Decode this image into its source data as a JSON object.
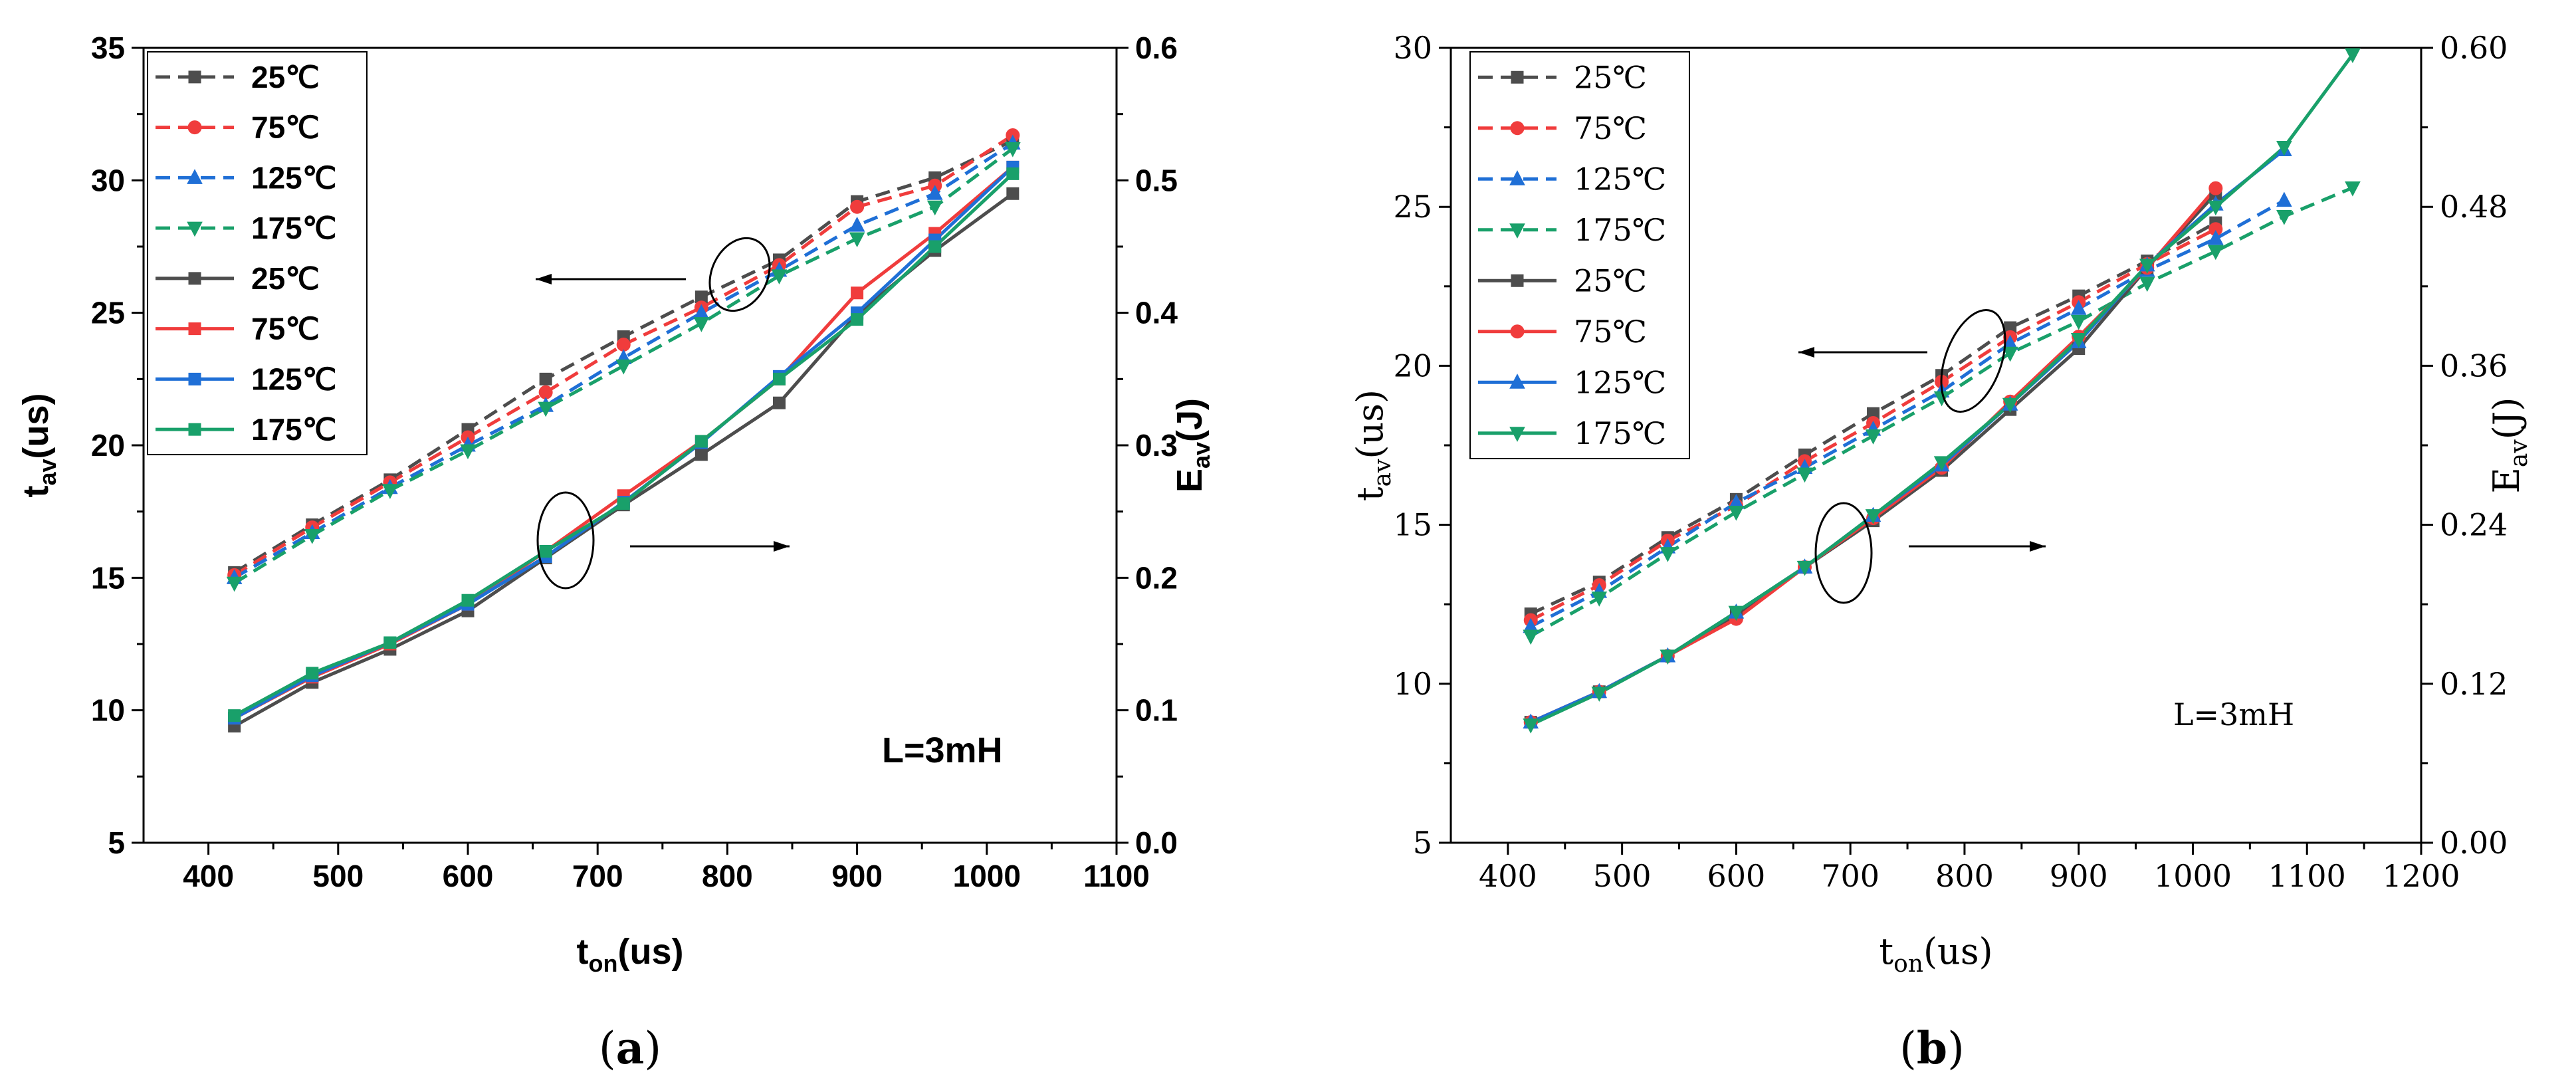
{
  "chart_data": [
    {
      "id": "a",
      "type": "line",
      "caption": "a",
      "annotation": "L=3mH",
      "x": [
        420,
        480,
        540,
        600,
        660,
        720,
        780,
        840,
        900,
        960,
        1020
      ],
      "xlim": [
        350,
        1100
      ],
      "xticks": [
        400,
        500,
        600,
        700,
        800,
        900,
        1000,
        1100
      ],
      "xlabel": {
        "main": "t",
        "sub": "on",
        "unit": "(us)"
      },
      "ylim_left": [
        5,
        35
      ],
      "yticks_left": [
        5,
        10,
        15,
        20,
        25,
        30,
        35
      ],
      "ylabel_left": {
        "main": "t",
        "sub": "av",
        "unit": "(us)"
      },
      "ylim_right": [
        0.0,
        0.6
      ],
      "yticks_right": [
        "0.0",
        "0.1",
        "0.2",
        "0.3",
        "0.4",
        "0.5",
        "0.6"
      ],
      "ylabel_right": {
        "main": "E",
        "sub": "av",
        "unit": "(J)"
      },
      "legend": [
        "25℃",
        "75℃",
        "125℃",
        "175℃",
        "25℃",
        "75℃",
        "125℃",
        "175℃"
      ],
      "series": [
        {
          "name": "25℃",
          "axis": "left",
          "style": "dashed",
          "marker": "square",
          "color": "#4d4d4d",
          "values": [
            15.2,
            17.0,
            18.7,
            20.6,
            22.5,
            24.1,
            25.6,
            27.0,
            29.2,
            30.1,
            31.5
          ]
        },
        {
          "name": "75℃",
          "axis": "left",
          "style": "dashed",
          "marker": "circle",
          "color": "#f03c3c",
          "values": [
            15.1,
            16.9,
            18.6,
            20.3,
            22.0,
            23.8,
            25.2,
            26.8,
            29.0,
            29.8,
            31.7
          ]
        },
        {
          "name": "125℃",
          "axis": "left",
          "style": "dashed",
          "marker": "triangle-up",
          "color": "#1f6fd6",
          "values": [
            15.0,
            16.7,
            18.4,
            20.0,
            21.5,
            23.3,
            25.0,
            26.6,
            28.3,
            29.5,
            31.4
          ]
        },
        {
          "name": "175℃",
          "axis": "left",
          "style": "dashed",
          "marker": "triangle-down",
          "color": "#19a06a",
          "values": [
            14.8,
            16.6,
            18.3,
            19.8,
            21.4,
            23.0,
            24.6,
            26.4,
            27.8,
            29.0,
            31.2
          ]
        },
        {
          "name": "25℃",
          "axis": "right",
          "style": "solid",
          "marker": "square",
          "color": "#4d4d4d",
          "values": [
            0.088,
            0.121,
            0.146,
            0.175,
            0.215,
            0.255,
            0.293,
            0.332,
            0.399,
            0.447,
            0.49
          ]
        },
        {
          "name": "75℃",
          "axis": "right",
          "style": "solid",
          "marker": "square",
          "color": "#f03c3c",
          "values": [
            0.094,
            0.125,
            0.15,
            0.18,
            0.22,
            0.262,
            0.303,
            0.35,
            0.415,
            0.46,
            0.51
          ]
        },
        {
          "name": "125℃",
          "axis": "right",
          "style": "solid",
          "marker": "square",
          "color": "#1f6fd6",
          "values": [
            0.094,
            0.126,
            0.151,
            0.18,
            0.216,
            0.257,
            0.302,
            0.352,
            0.4,
            0.455,
            0.51
          ]
        },
        {
          "name": "175℃",
          "axis": "right",
          "style": "solid",
          "marker": "square",
          "color": "#19a06a",
          "values": [
            0.096,
            0.128,
            0.151,
            0.183,
            0.22,
            0.256,
            0.303,
            0.35,
            0.395,
            0.45,
            0.505
          ]
        }
      ]
    },
    {
      "id": "b",
      "type": "line",
      "caption": "b",
      "annotation": "L=3mH",
      "x": [
        420,
        480,
        540,
        600,
        660,
        720,
        780,
        840,
        900,
        960,
        1020,
        1080,
        1140
      ],
      "xlim": [
        350,
        1200
      ],
      "xticks": [
        400,
        500,
        600,
        700,
        800,
        900,
        1000,
        1100,
        1200
      ],
      "xlabel": {
        "main": "t",
        "sub": "on",
        "unit": "(us)"
      },
      "ylim_left": [
        5,
        30
      ],
      "yticks_left": [
        5,
        10,
        15,
        20,
        25,
        30
      ],
      "ylabel_left": {
        "main": "t",
        "sub": "av",
        "unit": "(us)"
      },
      "ylim_right": [
        0.0,
        0.6
      ],
      "yticks_right": [
        "0.00",
        "0.12",
        "0.24",
        "0.36",
        "0.48",
        "0.60"
      ],
      "ylabel_right": {
        "main": "E",
        "sub": "av",
        "unit": "(J)"
      },
      "legend": [
        "25℃",
        "75℃",
        "125℃",
        "175℃",
        "25℃",
        "75℃",
        "125℃",
        "175℃"
      ],
      "series": [
        {
          "name": "25℃",
          "axis": "left",
          "style": "dashed",
          "marker": "square",
          "color": "#4d4d4d",
          "values": [
            12.2,
            13.2,
            14.6,
            15.8,
            17.2,
            18.5,
            19.7,
            21.2,
            22.2,
            23.3,
            24.5,
            null,
            null
          ]
        },
        {
          "name": "75℃",
          "axis": "left",
          "style": "dashed",
          "marker": "circle",
          "color": "#f03c3c",
          "values": [
            12.0,
            13.1,
            14.5,
            15.6,
            17.0,
            18.2,
            19.5,
            20.9,
            22.0,
            23.2,
            24.3,
            null,
            null
          ]
        },
        {
          "name": "125℃",
          "axis": "left",
          "style": "dashed",
          "marker": "triangle-up",
          "color": "#1f6fd6",
          "values": [
            11.8,
            12.9,
            14.3,
            15.7,
            16.8,
            18.0,
            19.2,
            20.7,
            21.8,
            23.0,
            24.0,
            25.2,
            null
          ]
        },
        {
          "name": "175℃",
          "axis": "left",
          "style": "dashed",
          "marker": "triangle-down",
          "color": "#19a06a",
          "values": [
            11.5,
            12.7,
            14.1,
            15.4,
            16.6,
            17.8,
            19.0,
            20.4,
            21.4,
            22.6,
            23.6,
            24.7,
            25.6
          ]
        },
        {
          "name": "25℃",
          "axis": "right",
          "style": "solid",
          "marker": "square",
          "color": "#4d4d4d",
          "values": [
            0.091,
            0.114,
            0.141,
            0.172,
            0.208,
            0.243,
            0.281,
            0.327,
            0.373,
            0.434,
            0.49,
            null,
            null
          ]
        },
        {
          "name": "75℃",
          "axis": "right",
          "style": "solid",
          "marker": "circle",
          "color": "#f03c3c",
          "values": [
            0.091,
            0.114,
            0.141,
            0.169,
            0.208,
            0.245,
            0.283,
            0.333,
            0.382,
            0.434,
            0.494,
            null,
            null
          ]
        },
        {
          "name": "125℃",
          "axis": "right",
          "style": "solid",
          "marker": "triangle-up",
          "color": "#1f6fd6",
          "values": [
            0.091,
            0.114,
            0.141,
            0.174,
            0.208,
            0.247,
            0.285,
            0.331,
            0.378,
            0.436,
            0.482,
            0.523,
            null
          ]
        },
        {
          "name": "175℃",
          "axis": "right",
          "style": "solid",
          "marker": "triangle-down",
          "color": "#19a06a",
          "values": [
            0.089,
            0.113,
            0.141,
            0.174,
            0.208,
            0.247,
            0.287,
            0.331,
            0.38,
            0.436,
            0.48,
            0.525,
            0.595
          ]
        }
      ]
    }
  ]
}
